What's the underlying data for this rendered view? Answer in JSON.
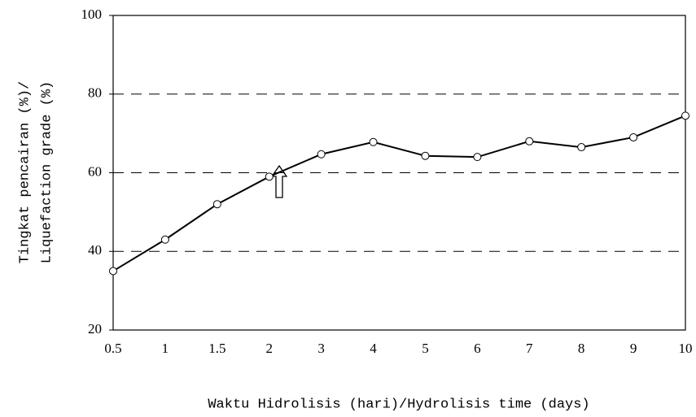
{
  "chart_data": {
    "type": "line",
    "xlabel": "Waktu Hidrolisis (hari)/Hydrolisis time (days)",
    "ylabel": [
      "Tingkat pencairan (%)/",
      "Liquefaction grade (%)"
    ],
    "categories": [
      "0.5",
      "1",
      "1.5",
      "2",
      "3",
      "4",
      "5",
      "6",
      "7",
      "8",
      "9",
      "10"
    ],
    "series": [
      {
        "color": "#000000",
        "values": [
          35,
          43,
          52,
          59,
          64.7,
          67.8,
          64.3,
          64,
          68,
          66.5,
          69,
          74.5
        ]
      }
    ],
    "ylim": [
      20,
      100
    ],
    "yticks": [
      20,
      40,
      60,
      80,
      100
    ],
    "grid": true
  }
}
